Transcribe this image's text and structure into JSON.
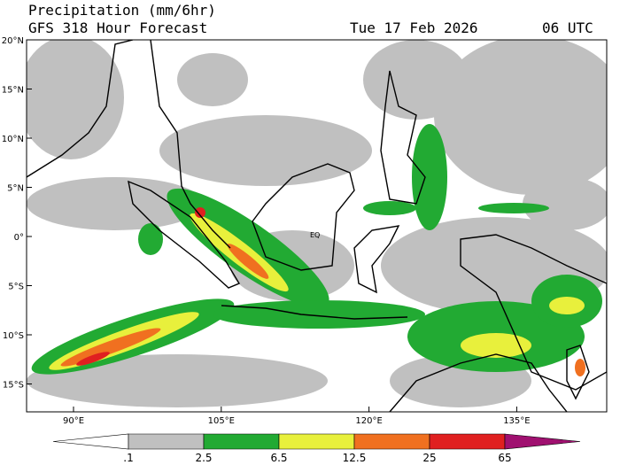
{
  "header": {
    "title": "Precipitation (mm/6hr)",
    "subtitle": "GFS 318 Hour Forecast",
    "date": "Tue 17 Feb 2026",
    "time": "06 UTC"
  },
  "map": {
    "lat_labels": [
      "20°N",
      "15°N",
      "10°N",
      "5°N",
      "0°",
      "5°S",
      "10°S",
      "15°S"
    ],
    "lon_labels": [
      "90°E",
      "105°E",
      "120°E",
      "135°E"
    ],
    "annotation": "EQ"
  },
  "colorbar": {
    "labels": [
      ".1",
      "2.5",
      "6.5",
      "12.5",
      "25",
      "65"
    ],
    "colors": [
      "#ffffff",
      "#c0c0c0",
      "#22aa33",
      "#e8f03c",
      "#f07020",
      "#e02020",
      "#a01070"
    ]
  }
}
